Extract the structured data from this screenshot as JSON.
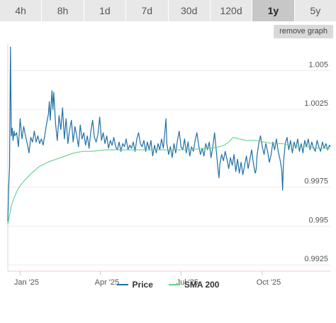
{
  "tabs": [
    {
      "label": "4h",
      "active": false
    },
    {
      "label": "8h",
      "active": false
    },
    {
      "label": "1d",
      "active": false
    },
    {
      "label": "7d",
      "active": false
    },
    {
      "label": "30d",
      "active": false
    },
    {
      "label": "120d",
      "active": false
    },
    {
      "label": "1y",
      "active": true
    },
    {
      "label": "5y",
      "active": false
    }
  ],
  "remove_graph_label": "remove graph",
  "colors": {
    "price": "#1f6fa5",
    "sma": "#66d08a",
    "grid": "#ececec",
    "accent_border": "#f2c9cf"
  },
  "chart_data": {
    "type": "line",
    "x_ticks": [
      "Jan '25",
      "Apr '25",
      "Jul '25",
      "Oct '25"
    ],
    "y_ticks": [
      1.005,
      1.0025,
      0.9975,
      0.995,
      0.9925
    ],
    "y_tick_labels": [
      "1.005",
      "1.0025",
      "0.9975",
      "0.995",
      "0.9925"
    ],
    "ylim": [
      0.9921,
      1.0067
    ],
    "xlim": [
      0,
      365
    ],
    "series": [
      {
        "name": "Price",
        "points": [
          [
            0,
            0.9953
          ],
          [
            1,
            0.9975
          ],
          [
            2,
            0.9988
          ],
          [
            3,
            1.0065
          ],
          [
            4,
            1.0008
          ],
          [
            5,
            1.0013
          ],
          [
            6,
            1.0005
          ],
          [
            7,
            1.0011
          ],
          [
            8,
            1.0008
          ],
          [
            10,
            1.001
          ],
          [
            12,
            1.0001
          ],
          [
            14,
            1.0019
          ],
          [
            16,
            1.0006
          ],
          [
            18,
            1.0014
          ],
          [
            20,
            1.0008
          ],
          [
            22,
            1.0003
          ],
          [
            24,
            0.9997
          ],
          [
            26,
            1.0007
          ],
          [
            28,
            1.0004
          ],
          [
            30,
            1.0011
          ],
          [
            32,
            1.0004
          ],
          [
            34,
            1.0008
          ],
          [
            36,
            1.0003
          ],
          [
            38,
            1.0006
          ],
          [
            40,
            1.0002
          ],
          [
            42,
            1.0009
          ],
          [
            44,
            1.0016
          ],
          [
            46,
            1.0022
          ],
          [
            47,
            1.003
          ],
          [
            48,
            1.0018
          ],
          [
            50,
            1.0037
          ],
          [
            51,
            1.0025
          ],
          [
            52,
            1.0036
          ],
          [
            54,
            1.0016
          ],
          [
            56,
            1.0005
          ],
          [
            58,
            1.0021
          ],
          [
            60,
            1.0012
          ],
          [
            62,
            1.0026
          ],
          [
            64,
            1.0006
          ],
          [
            66,
            1.0019
          ],
          [
            68,
            1.0003
          ],
          [
            70,
            1.0012
          ],
          [
            72,
            1.0018
          ],
          [
            74,
            1.0004
          ],
          [
            76,
            1.0014
          ],
          [
            78,
            1.0008
          ],
          [
            80,
            1.0001
          ],
          [
            82,
            1.0015
          ],
          [
            84,
            1.0006
          ],
          [
            86,
            1.001
          ],
          [
            88,
            1.0002
          ],
          [
            90,
            1.0008
          ],
          [
            92,
            1.0
          ],
          [
            94,
            1.0011
          ],
          [
            96,
            1.0018
          ],
          [
            98,
            1.0007
          ],
          [
            100,
            1.0004
          ],
          [
            102,
            1.0009
          ],
          [
            104,
            1.002
          ],
          [
            105,
            1.0013
          ],
          [
            106,
            1.0005
          ],
          [
            108,
            1.001
          ],
          [
            110,
            1.0003
          ],
          [
            112,
            1.0008
          ],
          [
            114,
            1.0
          ],
          [
            116,
            1.0005
          ],
          [
            118,
            1.0002
          ],
          [
            120,
            1.0007
          ],
          [
            122,
            1.0001
          ],
          [
            124,
            0.9999
          ],
          [
            126,
            1.0004
          ],
          [
            128,
            0.9998
          ],
          [
            130,
            1.0003
          ],
          [
            132,
            1.0001
          ],
          [
            134,
            1.0006
          ],
          [
            136,
            0.9999
          ],
          [
            138,
            1.0002
          ],
          [
            140,
            1.0
          ],
          [
            142,
            1.0004
          ],
          [
            144,
            0.9998
          ],
          [
            146,
            1.0006
          ],
          [
            148,
            1.001
          ],
          [
            150,
            1.0003
          ],
          [
            152,
            1.0001
          ],
          [
            154,
            1.0005
          ],
          [
            156,
            0.9998
          ],
          [
            158,
            1.0004
          ],
          [
            160,
            0.9999
          ],
          [
            162,
            1.0005
          ],
          [
            164,
            0.9995
          ],
          [
            166,
            1.0002
          ],
          [
            168,
            0.9997
          ],
          [
            170,
            1.0003
          ],
          [
            172,
            0.9999
          ],
          [
            174,
            1.0006
          ],
          [
            176,
            1.0
          ],
          [
            178,
            1.0012
          ],
          [
            179,
            1.0019
          ],
          [
            180,
            1.0003
          ],
          [
            182,
            0.9996
          ],
          [
            184,
            1.0001
          ],
          [
            186,
            0.9994
          ],
          [
            188,
            1.0003
          ],
          [
            190,
            0.9997
          ],
          [
            192,
            1.0005
          ],
          [
            194,
            1.0011
          ],
          [
            196,
            1.0001
          ],
          [
            198,
            0.9999
          ],
          [
            200,
            1.0006
          ],
          [
            202,
            0.9997
          ],
          [
            204,
            1.0004
          ],
          [
            206,
            0.9995
          ],
          [
            208,
            1.0001
          ],
          [
            210,
            0.9998
          ],
          [
            212,
            1.0005
          ],
          [
            214,
            1.001
          ],
          [
            216,
            1.0002
          ],
          [
            218,
            0.9996
          ],
          [
            220,
            1.0
          ],
          [
            222,
            0.9995
          ],
          [
            224,
            1.0003
          ],
          [
            226,
            0.9999
          ],
          [
            228,
            1.0004
          ],
          [
            230,
            0.9994
          ],
          [
            232,
            1.0001
          ],
          [
            234,
            1.001
          ],
          [
            236,
            0.9998
          ],
          [
            238,
            0.9986
          ],
          [
            239,
            0.9981
          ],
          [
            240,
            0.999
          ],
          [
            242,
            0.9996
          ],
          [
            244,
            0.9992
          ],
          [
            246,
            0.9998
          ],
          [
            248,
            0.9993
          ],
          [
            250,
            0.9987
          ],
          [
            252,
            0.9994
          ],
          [
            254,
            0.9989
          ],
          [
            256,
            0.9996
          ],
          [
            258,
            0.9985
          ],
          [
            260,
            0.9993
          ],
          [
            262,
            0.9984
          ],
          [
            264,
            0.9991
          ],
          [
            266,
            0.9983
          ],
          [
            268,
            0.9989
          ],
          [
            270,
            0.9995
          ],
          [
            272,
            0.9987
          ],
          [
            274,
            0.9993
          ],
          [
            276,
            0.9999
          ],
          [
            278,
            0.999
          ],
          [
            280,
            0.9984
          ],
          [
            281,
            0.9986
          ],
          [
            282,
            0.9995
          ],
          [
            284,
            1.0003
          ],
          [
            286,
            1.0008
          ],
          [
            288,
            1.0001
          ],
          [
            290,
            0.9996
          ],
          [
            292,
            1.0003
          ],
          [
            294,
            0.9998
          ],
          [
            296,
            0.9991
          ],
          [
            298,
            0.9996
          ],
          [
            300,
            1.0004
          ],
          [
            302,
            0.9999
          ],
          [
            304,
            1.0006
          ],
          [
            306,
            0.9998
          ],
          [
            308,
            0.9993
          ],
          [
            310,
            0.9986
          ],
          [
            311,
            0.9973
          ],
          [
            312,
            0.9991
          ],
          [
            314,
            1.0003
          ],
          [
            316,
            1.0007
          ],
          [
            318,
            0.9999
          ],
          [
            320,
            1.0005
          ],
          [
            322,
            0.9997
          ],
          [
            324,
            1.0004
          ],
          [
            326,
            1.0
          ],
          [
            328,
            1.0006
          ],
          [
            330,
            0.9998
          ],
          [
            332,
            1.0003
          ],
          [
            334,
            0.9997
          ],
          [
            336,
            1.0005
          ],
          [
            338,
            1.0001
          ],
          [
            340,
            1.0006
          ],
          [
            342,
            0.9999
          ],
          [
            344,
            1.0004
          ],
          [
            346,
            1.0
          ],
          [
            348,
            0.9998
          ],
          [
            350,
            1.0005
          ],
          [
            352,
            1.0001
          ],
          [
            354,
            0.9998
          ],
          [
            356,
            1.0004
          ],
          [
            358,
            1.0
          ],
          [
            360,
            1.0003
          ],
          [
            362,
            0.9999
          ],
          [
            364,
            1.0002
          ],
          [
            365,
            1.0001
          ]
        ]
      },
      {
        "name": "SMA 200",
        "points": [
          [
            0,
            0.9951
          ],
          [
            2,
            0.9957
          ],
          [
            4,
            0.9963
          ],
          [
            7,
            0.9968
          ],
          [
            10,
            0.9972
          ],
          [
            14,
            0.9976
          ],
          [
            20,
            0.998
          ],
          [
            27,
            0.9984
          ],
          [
            35,
            0.9988
          ],
          [
            45,
            0.9991
          ],
          [
            55,
            0.9993
          ],
          [
            65,
            0.9995
          ],
          [
            75,
            0.9997
          ],
          [
            85,
            0.9998
          ],
          [
            95,
            0.9998
          ],
          [
            110,
            0.9999
          ],
          [
            130,
            0.9999
          ],
          [
            150,
            0.9999
          ],
          [
            170,
            0.9999
          ],
          [
            200,
            0.9999
          ],
          [
            230,
            1.0
          ],
          [
            240,
            1.0001
          ],
          [
            245,
            1.0002
          ],
          [
            250,
            1.0004
          ],
          [
            255,
            1.0007
          ],
          [
            262,
            1.0006
          ],
          [
            270,
            1.0005
          ],
          [
            280,
            1.0005
          ],
          [
            290,
            1.0004
          ],
          [
            300,
            1.0003
          ],
          [
            310,
            1.0003
          ],
          [
            320,
            1.0002
          ],
          [
            330,
            1.0001
          ],
          [
            340,
            1.0001
          ],
          [
            350,
            1.0
          ],
          [
            365,
            1.0
          ]
        ]
      }
    ],
    "grid": true,
    "legend": "bottom-center"
  }
}
